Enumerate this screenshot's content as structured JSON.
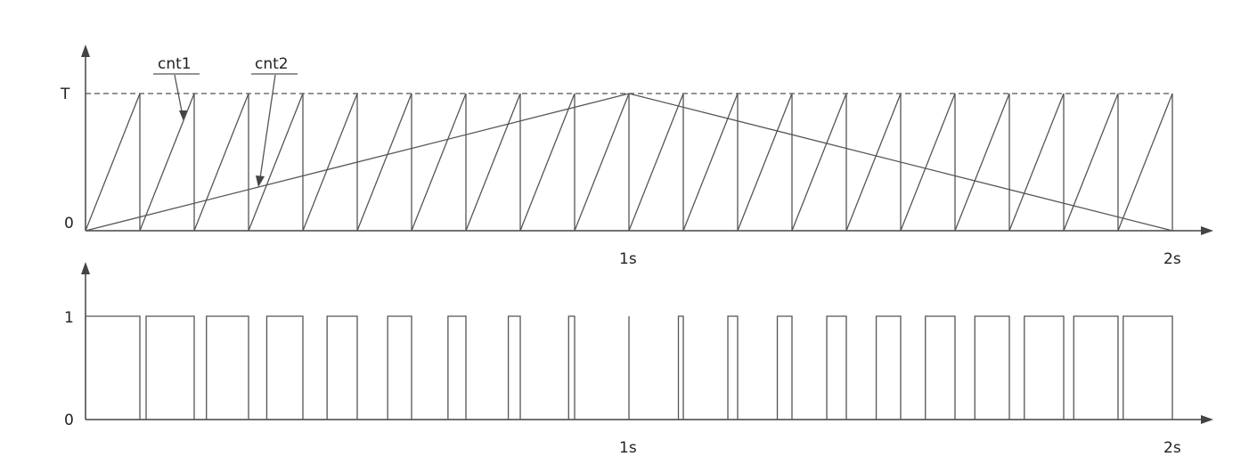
{
  "top_plot": {
    "y_labels": {
      "top": "T",
      "zero": "0"
    },
    "x_labels": {
      "mid": "1s",
      "end": "2s"
    },
    "callouts": {
      "fast_counter": "cnt1",
      "slow_counter": "cnt2"
    },
    "fast_counter_periods": 20,
    "slow_counter": "triangle rising from 0 at 0s to T at 1s and falling back to 0 at 2s"
  },
  "bottom_plot": {
    "y_labels": {
      "high": "1",
      "zero": "0"
    },
    "x_labels": {
      "mid": "1s",
      "end": "2s"
    },
    "signal": "PWM output high while cnt1 > cnt2; pulse width shrinks toward 1s and grows again toward 2s"
  }
}
